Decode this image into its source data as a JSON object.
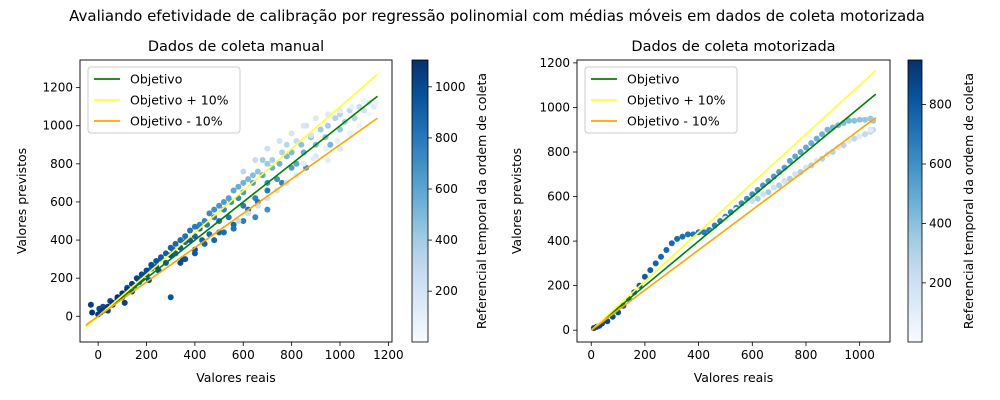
{
  "suptitle": "Avaliando efetividade de calibração por regressão polinomial com médias móveis em dados de coleta motorizada",
  "colors": {
    "objetivo": "#008000",
    "plus": "#ffff33",
    "minus": "#ffa500",
    "cmap": [
      "#f7fbff",
      "#deebf7",
      "#c6dbef",
      "#9ecae1",
      "#6baed6",
      "#4292c6",
      "#2171b5",
      "#08519c",
      "#08306b"
    ]
  },
  "chart_data": [
    {
      "type": "scatter",
      "title": "Dados de coleta manual",
      "xlabel": "Valores reais",
      "ylabel": "Valores previstos",
      "xlim": [
        -75,
        1215
      ],
      "ylim": [
        -135,
        1345
      ],
      "xticks": [
        0,
        200,
        400,
        600,
        800,
        1000,
        1200
      ],
      "yticks": [
        0,
        200,
        400,
        600,
        800,
        1000,
        1200
      ],
      "legend_position": "top-left",
      "lines": [
        {
          "name": "Objetivo",
          "color_key": "objetivo",
          "x": [
            -50,
            1155
          ],
          "y": [
            -50,
            1155
          ]
        },
        {
          "name": "Objetivo + 10%",
          "color_key": "plus",
          "x": [
            -50,
            1155
          ],
          "y": [
            -55,
            1270
          ]
        },
        {
          "name": "Objetivo - 10%",
          "color_key": "minus",
          "x": [
            -50,
            1155
          ],
          "y": [
            -45,
            1040
          ]
        }
      ],
      "colorbar": {
        "label": "Referencial temporal da ordem de coleta",
        "min": 1,
        "max": 1105,
        "ticks": [
          200,
          400,
          600,
          800,
          1000
        ]
      },
      "points_description": "Scattered points around the diagonal with increasing spread; points for each collection order index (1-1105)",
      "points": [
        [
          -30,
          60,
          1050
        ],
        [
          -25,
          20,
          1080
        ],
        [
          0,
          10,
          1060
        ],
        [
          5,
          40,
          1000
        ],
        [
          20,
          50,
          980
        ],
        [
          40,
          30,
          1030
        ],
        [
          50,
          80,
          990
        ],
        [
          60,
          60,
          1020
        ],
        [
          80,
          90,
          970
        ],
        [
          100,
          100,
          960
        ],
        [
          110,
          70,
          1040
        ],
        [
          120,
          150,
          940
        ],
        [
          140,
          130,
          1000
        ],
        [
          150,
          160,
          900
        ],
        [
          170,
          180,
          980
        ],
        [
          180,
          200,
          930
        ],
        [
          200,
          220,
          960
        ],
        [
          210,
          190,
          1010
        ],
        [
          220,
          250,
          900
        ],
        [
          240,
          260,
          950
        ],
        [
          250,
          240,
          1000
        ],
        [
          260,
          300,
          880
        ],
        [
          280,
          280,
          930
        ],
        [
          300,
          320,
          980
        ],
        [
          300,
          100,
          950
        ],
        [
          310,
          350,
          860
        ],
        [
          320,
          330,
          910
        ],
        [
          340,
          360,
          940
        ],
        [
          350,
          300,
          1000
        ],
        [
          360,
          390,
          870
        ],
        [
          380,
          400,
          920
        ],
        [
          400,
          420,
          880
        ],
        [
          400,
          350,
          960
        ],
        [
          420,
          460,
          850
        ],
        [
          430,
          400,
          900
        ],
        [
          450,
          480,
          800
        ],
        [
          460,
          430,
          870
        ],
        [
          480,
          520,
          780
        ],
        [
          500,
          500,
          840
        ],
        [
          500,
          440,
          900
        ],
        [
          520,
          560,
          760
        ],
        [
          540,
          520,
          820
        ],
        [
          550,
          600,
          700
        ],
        [
          560,
          480,
          880
        ],
        [
          580,
          620,
          720
        ],
        [
          600,
          580,
          800
        ],
        [
          600,
          650,
          650
        ],
        [
          620,
          560,
          860
        ],
        [
          640,
          700,
          640
        ],
        [
          650,
          620,
          760
        ],
        [
          660,
          600,
          820
        ],
        [
          680,
          740,
          600
        ],
        [
          700,
          700,
          700
        ],
        [
          700,
          660,
          800
        ],
        [
          720,
          780,
          560
        ],
        [
          740,
          720,
          680
        ],
        [
          750,
          800,
          540
        ],
        [
          760,
          700,
          760
        ],
        [
          780,
          840,
          520
        ],
        [
          800,
          780,
          640
        ],
        [
          800,
          860,
          500
        ],
        [
          820,
          800,
          600
        ],
        [
          840,
          900,
          460
        ],
        [
          850,
          860,
          560
        ],
        [
          860,
          780,
          700
        ],
        [
          880,
          940,
          440
        ],
        [
          900,
          900,
          500
        ],
        [
          920,
          980,
          400
        ],
        [
          940,
          940,
          460
        ],
        [
          950,
          1000,
          380
        ],
        [
          960,
          900,
          520
        ],
        [
          980,
          1040,
          340
        ],
        [
          1000,
          980,
          420
        ],
        [
          1000,
          1060,
          320
        ],
        [
          1020,
          1020,
          380
        ],
        [
          1040,
          1080,
          300
        ],
        [
          1060,
          1040,
          340
        ],
        [
          1080,
          1100,
          260
        ],
        [
          1100,
          1080,
          220
        ],
        [
          1120,
          1120,
          180
        ],
        [
          1140,
          1100,
          140
        ],
        [
          1000,
          880,
          150
        ],
        [
          950,
          820,
          120
        ],
        [
          900,
          840,
          170
        ],
        [
          880,
          950,
          200
        ],
        [
          860,
          1000,
          230
        ],
        [
          820,
          920,
          280
        ],
        [
          780,
          900,
          320
        ],
        [
          760,
          860,
          350
        ],
        [
          720,
          820,
          380
        ],
        [
          700,
          800,
          420
        ],
        [
          680,
          820,
          400
        ],
        [
          660,
          760,
          450
        ],
        [
          640,
          740,
          480
        ],
        [
          620,
          720,
          510
        ],
        [
          600,
          700,
          540
        ],
        [
          580,
          680,
          560
        ],
        [
          560,
          660,
          590
        ],
        [
          540,
          620,
          620
        ],
        [
          520,
          600,
          640
        ],
        [
          500,
          580,
          660
        ],
        [
          480,
          560,
          690
        ],
        [
          460,
          540,
          720
        ],
        [
          440,
          500,
          740
        ],
        [
          420,
          480,
          760
        ],
        [
          400,
          470,
          790
        ],
        [
          380,
          450,
          810
        ],
        [
          360,
          420,
          830
        ],
        [
          340,
          400,
          850
        ],
        [
          320,
          380,
          870
        ],
        [
          300,
          360,
          890
        ],
        [
          280,
          330,
          910
        ],
        [
          260,
          310,
          930
        ],
        [
          240,
          290,
          950
        ],
        [
          220,
          270,
          970
        ],
        [
          200,
          240,
          990
        ],
        [
          180,
          220,
          1010
        ],
        [
          160,
          200,
          1030
        ],
        [
          140,
          170,
          1050
        ],
        [
          120,
          140,
          1070
        ],
        [
          100,
          120,
          1090
        ],
        [
          80,
          100,
          1100
        ],
        [
          60,
          70,
          1095
        ],
        [
          40,
          50,
          1085
        ],
        [
          20,
          30,
          1075
        ],
        [
          10,
          20,
          1065
        ],
        [
          700,
          560,
          700
        ],
        [
          650,
          520,
          740
        ],
        [
          600,
          500,
          780
        ],
        [
          560,
          460,
          820
        ],
        [
          520,
          440,
          850
        ],
        [
          480,
          400,
          880
        ],
        [
          440,
          380,
          900
        ],
        [
          400,
          330,
          930
        ],
        [
          360,
          300,
          960
        ],
        [
          340,
          280,
          990
        ],
        [
          600,
          760,
          300
        ],
        [
          650,
          820,
          260
        ],
        [
          700,
          880,
          240
        ],
        [
          750,
          920,
          210
        ],
        [
          800,
          960,
          190
        ],
        [
          850,
          1000,
          170
        ],
        [
          900,
          1040,
          150
        ],
        [
          950,
          1060,
          130
        ],
        [
          1000,
          1080,
          110
        ],
        [
          1050,
          1100,
          90
        ],
        [
          1100,
          1130,
          70
        ],
        [
          1150,
          1120,
          50
        ],
        [
          1120,
          1060,
          40
        ],
        [
          1080,
          1000,
          60
        ],
        [
          1040,
          960,
          80
        ],
        [
          990,
          920,
          100
        ],
        [
          940,
          880,
          90
        ],
        [
          890,
          830,
          110
        ],
        [
          850,
          800,
          130
        ],
        [
          820,
          740,
          150
        ],
        [
          780,
          700,
          170
        ],
        [
          740,
          660,
          190
        ],
        [
          700,
          620,
          210
        ],
        [
          660,
          580,
          230
        ],
        [
          620,
          540,
          250
        ],
        [
          580,
          500,
          270
        ]
      ]
    },
    {
      "type": "scatter",
      "title": "Dados de coleta motorizada",
      "xlabel": "Valores reais",
      "ylabel": "Valores previstos",
      "xlim": [
        -53,
        1113
      ],
      "ylim": [
        -53,
        1213
      ],
      "xticks": [
        0,
        200,
        400,
        600,
        800,
        1000
      ],
      "yticks": [
        0,
        200,
        400,
        600,
        800,
        1000,
        1200
      ],
      "legend_position": "top-left",
      "lines": [
        {
          "name": "Objetivo",
          "color_key": "objetivo",
          "x": [
            0,
            1060
          ],
          "y": [
            0,
            1060
          ]
        },
        {
          "name": "Objetivo + 10%",
          "color_key": "plus",
          "x": [
            0,
            1060
          ],
          "y": [
            0,
            1166
          ]
        },
        {
          "name": "Objetivo - 10%",
          "color_key": "minus",
          "x": [
            0,
            1060
          ],
          "y": [
            0,
            954
          ]
        }
      ],
      "colorbar": {
        "label": "Referencial temporal da ordem de coleta",
        "min": 1,
        "max": 950,
        "ticks": [
          200,
          400,
          600,
          800
        ]
      },
      "points_description": "Dense curve: dark points follow/above the diagonal up to ~900, light points below diagonal beyond ~700",
      "points": [
        [
          10,
          10,
          900
        ],
        [
          20,
          15,
          890
        ],
        [
          30,
          20,
          880
        ],
        [
          40,
          30,
          870
        ],
        [
          60,
          40,
          860
        ],
        [
          80,
          60,
          850
        ],
        [
          100,
          80,
          840
        ],
        [
          120,
          110,
          830
        ],
        [
          140,
          140,
          820
        ],
        [
          160,
          170,
          810
        ],
        [
          180,
          200,
          800
        ],
        [
          200,
          240,
          790
        ],
        [
          220,
          270,
          780
        ],
        [
          240,
          300,
          770
        ],
        [
          260,
          330,
          760
        ],
        [
          280,
          360,
          750
        ],
        [
          300,
          390,
          740
        ],
        [
          320,
          410,
          730
        ],
        [
          340,
          420,
          720
        ],
        [
          360,
          430,
          710
        ],
        [
          380,
          430,
          700
        ],
        [
          400,
          440,
          690
        ],
        [
          420,
          440,
          680
        ],
        [
          440,
          450,
          670
        ],
        [
          460,
          470,
          660
        ],
        [
          480,
          490,
          650
        ],
        [
          500,
          510,
          640
        ],
        [
          520,
          530,
          630
        ],
        [
          540,
          550,
          620
        ],
        [
          560,
          570,
          610
        ],
        [
          580,
          590,
          600
        ],
        [
          600,
          610,
          590
        ],
        [
          620,
          630,
          580
        ],
        [
          640,
          650,
          570
        ],
        [
          660,
          670,
          560
        ],
        [
          680,
          690,
          550
        ],
        [
          700,
          710,
          540
        ],
        [
          720,
          730,
          530
        ],
        [
          740,
          760,
          520
        ],
        [
          760,
          780,
          510
        ],
        [
          780,
          800,
          500
        ],
        [
          800,
          820,
          490
        ],
        [
          820,
          840,
          480
        ],
        [
          840,
          860,
          470
        ],
        [
          860,
          880,
          460
        ],
        [
          880,
          900,
          450
        ],
        [
          900,
          910,
          440
        ],
        [
          920,
          920,
          430
        ],
        [
          940,
          930,
          420
        ],
        [
          960,
          940,
          410
        ],
        [
          980,
          940,
          400
        ],
        [
          1000,
          945,
          390
        ],
        [
          1020,
          945,
          380
        ],
        [
          1040,
          950,
          370
        ],
        [
          1050,
          940,
          360
        ],
        [
          620,
          590,
          350
        ],
        [
          660,
          620,
          340
        ],
        [
          700,
          650,
          330
        ],
        [
          740,
          680,
          320
        ],
        [
          780,
          710,
          310
        ],
        [
          820,
          740,
          300
        ],
        [
          860,
          770,
          290
        ],
        [
          900,
          800,
          280
        ],
        [
          940,
          830,
          270
        ],
        [
          980,
          860,
          260
        ],
        [
          1020,
          880,
          250
        ],
        [
          1040,
          890,
          240
        ],
        [
          1050,
          900,
          230
        ],
        [
          600,
          580,
          220
        ],
        [
          640,
          610,
          210
        ],
        [
          680,
          640,
          200
        ],
        [
          720,
          670,
          190
        ],
        [
          760,
          700,
          180
        ],
        [
          800,
          730,
          170
        ],
        [
          840,
          760,
          160
        ],
        [
          880,
          790,
          150
        ],
        [
          920,
          820,
          140
        ],
        [
          960,
          850,
          130
        ],
        [
          1000,
          870,
          120
        ],
        [
          1040,
          900,
          110
        ],
        [
          500,
          500,
          100
        ],
        [
          540,
          540,
          90
        ],
        [
          580,
          570,
          80
        ],
        [
          450,
          440,
          70
        ],
        [
          410,
          400,
          60
        ],
        [
          370,
          380,
          50
        ],
        [
          330,
          350,
          40
        ],
        [
          290,
          300,
          30
        ],
        [
          250,
          250,
          20
        ],
        [
          210,
          210,
          10
        ]
      ]
    }
  ]
}
